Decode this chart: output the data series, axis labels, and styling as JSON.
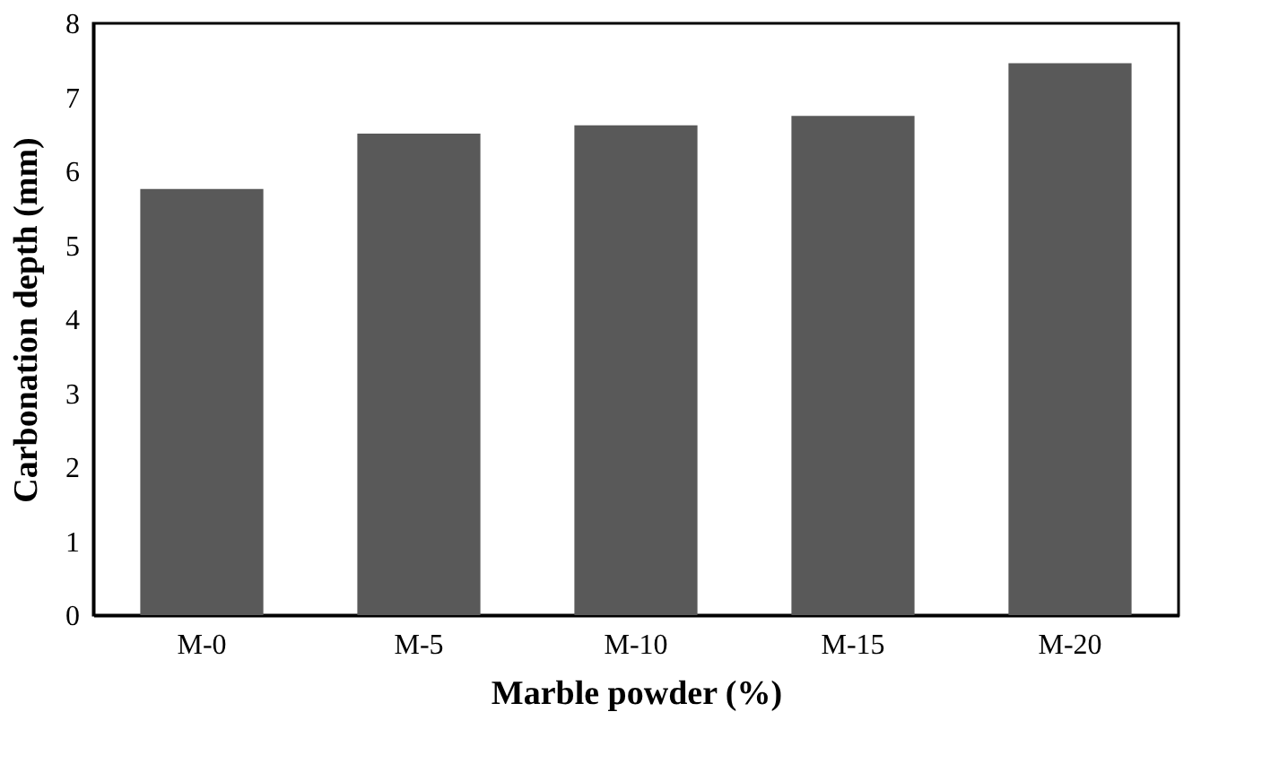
{
  "chart_data": {
    "type": "bar",
    "xlabel": "Marble powder (%)",
    "ylabel": "Carbonation depth (mm)",
    "categories": [
      "M-0",
      "M-5",
      "M-10",
      "M-15",
      "M-20"
    ],
    "values": [
      5.76,
      6.51,
      6.62,
      6.75,
      7.46
    ],
    "color": "#595959",
    "ylim": [
      0,
      8
    ],
    "yticks": [
      0,
      1,
      2,
      3,
      4,
      5,
      6,
      7,
      8
    ],
    "grid": false
  }
}
